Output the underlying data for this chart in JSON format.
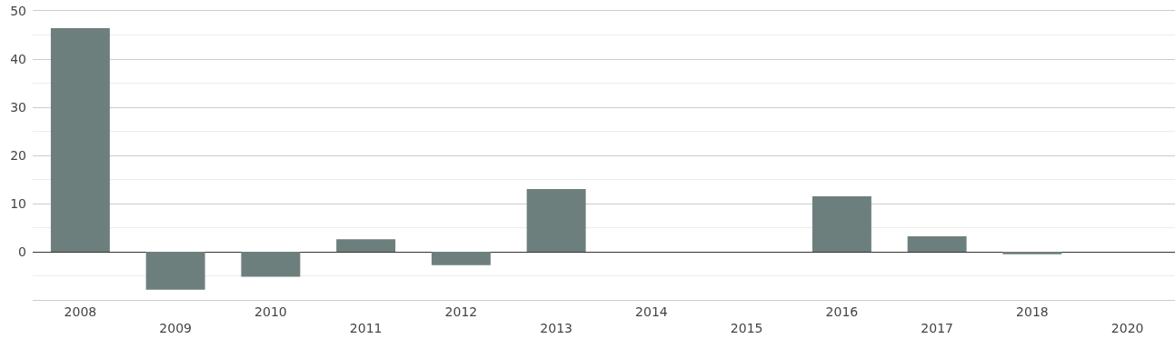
{
  "chart_data": {
    "type": "bar",
    "categories": [
      "2008",
      "2009",
      "2010",
      "2011",
      "2012",
      "2013",
      "2014",
      "2015",
      "2016",
      "2017",
      "2018",
      "2020"
    ],
    "values": [
      46.4,
      -7.9,
      -5.2,
      2.6,
      -2.8,
      13.0,
      null,
      null,
      11.5,
      3.2,
      -0.5,
      null
    ],
    "color": "#6d7f7d",
    "ylim": [
      -10,
      50
    ],
    "yticks": [
      {
        "value": -10,
        "label": null
      },
      0,
      10,
      20,
      30,
      40,
      50
    ],
    "grid": "y",
    "legend": false
  }
}
